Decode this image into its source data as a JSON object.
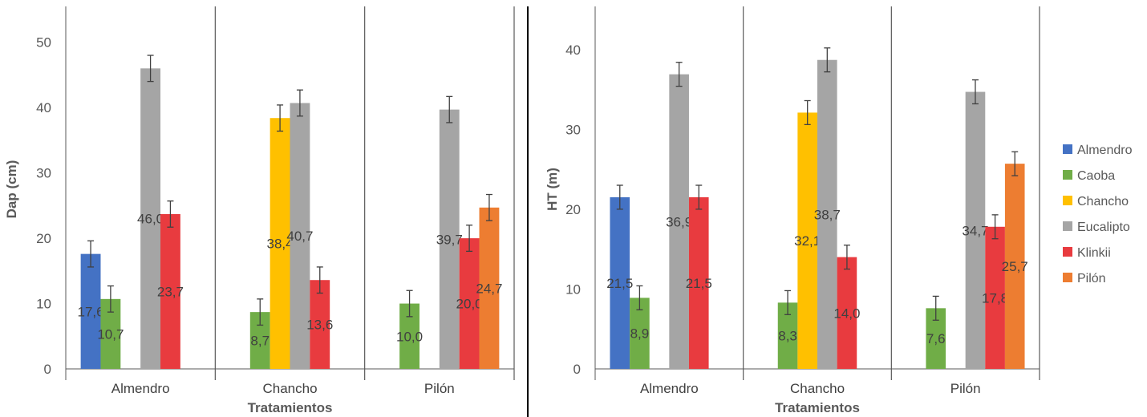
{
  "chart_data": [
    {
      "type": "bar",
      "ylabel": "Dap (cm)",
      "xlabel": "Tratamientos",
      "ylim": [
        0,
        55
      ],
      "yticks": [
        0,
        10,
        20,
        30,
        40,
        50
      ],
      "grid": false,
      "categories": [
        "Almendro",
        "Chancho",
        "Pilón"
      ],
      "series": [
        {
          "name": "Almendro",
          "values": [
            17.6,
            null,
            null
          ],
          "labels": [
            "17,6",
            "",
            ""
          ],
          "errors": [
            2.0,
            null,
            null
          ]
        },
        {
          "name": "Caoba",
          "values": [
            10.7,
            8.7,
            10.0
          ],
          "labels": [
            "10,7",
            "8,7",
            "10,0"
          ],
          "errors": [
            2.0,
            2.0,
            2.0
          ]
        },
        {
          "name": "Chancho",
          "values": [
            null,
            38.4,
            null
          ],
          "labels": [
            "",
            "38,4",
            ""
          ],
          "errors": [
            null,
            2.0,
            null
          ]
        },
        {
          "name": "Eucalipto",
          "values": [
            46.0,
            40.7,
            39.7
          ],
          "labels": [
            "46,0",
            "40,7",
            "39,7"
          ],
          "errors": [
            2.0,
            2.0,
            2.0
          ]
        },
        {
          "name": "Klinkii",
          "values": [
            23.7,
            13.6,
            20.0
          ],
          "labels": [
            "23,7",
            "13,6",
            "20,0"
          ],
          "errors": [
            2.0,
            2.0,
            2.0
          ]
        },
        {
          "name": "Pilón",
          "values": [
            null,
            null,
            24.7
          ],
          "labels": [
            "",
            "",
            "24,7"
          ],
          "errors": [
            null,
            null,
            2.0
          ]
        }
      ]
    },
    {
      "type": "bar",
      "ylabel": "HT (m)",
      "xlabel": "Tratamientos",
      "ylim": [
        0,
        45
      ],
      "yticks": [
        0,
        10,
        20,
        30,
        40
      ],
      "grid": false,
      "legend": "right",
      "categories": [
        "Almendro",
        "Chancho",
        "Pilón"
      ],
      "series": [
        {
          "name": "Almendro",
          "values": [
            21.5,
            null,
            null
          ],
          "labels": [
            "21,5",
            "",
            ""
          ],
          "errors": [
            1.5,
            null,
            null
          ]
        },
        {
          "name": "Caoba",
          "values": [
            8.9,
            8.3,
            7.6
          ],
          "labels": [
            "8,9",
            "8,3",
            "7,6"
          ],
          "errors": [
            1.5,
            1.5,
            1.5
          ]
        },
        {
          "name": "Chancho",
          "values": [
            null,
            32.1,
            null
          ],
          "labels": [
            "",
            "32,1",
            ""
          ],
          "errors": [
            null,
            1.5,
            null
          ]
        },
        {
          "name": "Eucalipto",
          "values": [
            36.9,
            38.7,
            34.7
          ],
          "labels": [
            "36,9",
            "38,7",
            "34,7"
          ],
          "errors": [
            1.5,
            1.5,
            1.5
          ]
        },
        {
          "name": "Klinkii",
          "values": [
            21.5,
            14.0,
            17.8
          ],
          "labels": [
            "21,5",
            "14,0",
            "17,8"
          ],
          "errors": [
            1.5,
            1.5,
            1.5
          ]
        },
        {
          "name": "Pilón",
          "values": [
            null,
            null,
            25.7
          ],
          "labels": [
            "",
            "",
            "25,7"
          ],
          "errors": [
            null,
            null,
            1.5
          ]
        }
      ]
    }
  ],
  "colors": {
    "Almendro": "#4472C4",
    "Caoba": "#70AD47",
    "Chancho": "#FFC000",
    "Eucalipto": "#A5A5A5",
    "Klinkii": "#E83B3F",
    "Pilón": "#ED7D31"
  }
}
